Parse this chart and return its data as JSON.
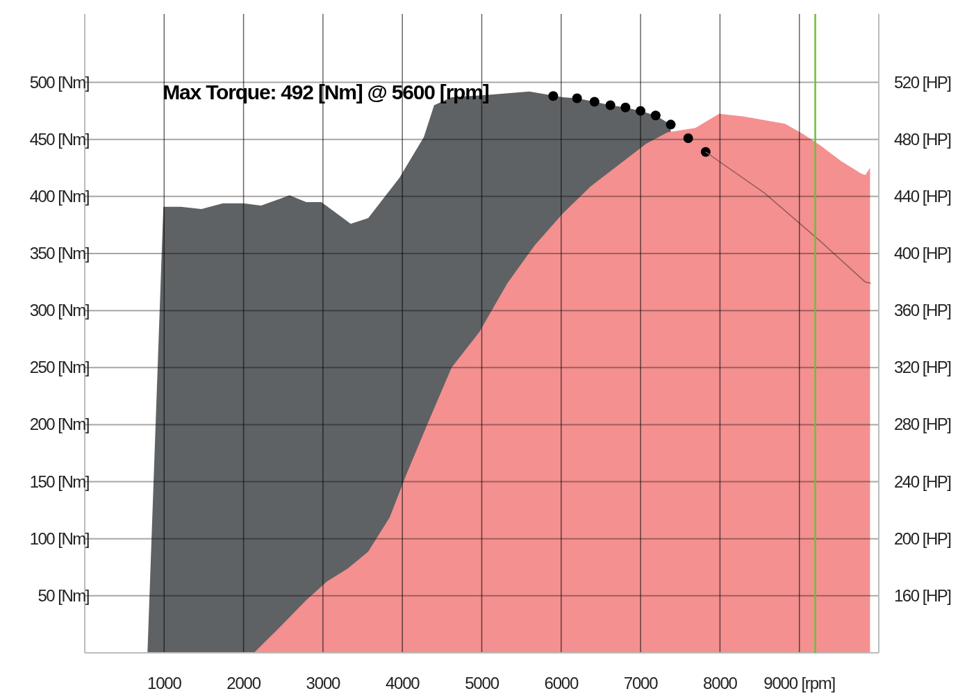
{
  "chart_data": {
    "type": "area",
    "annotations": [
      "Max Torque: 492 [Nm] @ 5600 [rpm]"
    ],
    "xlim": [
      0,
      10000
    ],
    "xticks": [
      1000,
      2000,
      3000,
      4000,
      5000,
      6000,
      7000,
      8000,
      {
        "value": 9000,
        "label": "9000 [rpm]"
      }
    ],
    "ylim": [
      0,
      560
    ],
    "yticks": [
      {
        "value": 50,
        "label": "50 [Nm]"
      },
      {
        "value": 100,
        "label": "100 [Nm]"
      },
      {
        "value": 150,
        "label": "150 [Nm]"
      },
      {
        "value": 200,
        "label": "200 [Nm]"
      },
      {
        "value": 250,
        "label": "250 [Nm]"
      },
      {
        "value": 300,
        "label": "300 [Nm]"
      },
      {
        "value": 350,
        "label": "350 [Nm]"
      },
      {
        "value": 400,
        "label": "400 [Nm]"
      },
      {
        "value": 450,
        "label": "450 [Nm]"
      },
      {
        "value": 500,
        "label": "500 [Nm]"
      }
    ],
    "y2lim": [
      120,
      568
    ],
    "y2ticks": [
      {
        "value": 160,
        "label": "160 [HP]"
      },
      {
        "value": 200,
        "label": "200 [HP]"
      },
      {
        "value": 240,
        "label": "240 [HP]"
      },
      {
        "value": 280,
        "label": "280 [HP]"
      },
      {
        "value": 320,
        "label": "320 [HP]"
      },
      {
        "value": 360,
        "label": "360 [HP]"
      },
      {
        "value": 400,
        "label": "400 [HP]"
      },
      {
        "value": 440,
        "label": "440 [HP]"
      },
      {
        "value": 480,
        "label": "480 [HP]"
      },
      {
        "value": 520,
        "label": "520 [HP]"
      }
    ],
    "grid": true,
    "ref_lines": [
      {
        "axis": "x",
        "value": 9200,
        "color": "#6cc03a"
      }
    ],
    "series": [
      {
        "color": "#5f6264",
        "x": [
          790,
          990,
          1210,
          1470,
          1740,
          2000,
          2220,
          2580,
          2790,
          2980,
          3350,
          3570,
          3960,
          4270,
          4400,
          4620,
          5060,
          5600,
          6020,
          6200,
          6420,
          6620,
          6810,
          7000,
          7190,
          7380
        ],
        "values": [
          0,
          391,
          391,
          389,
          394,
          394,
          392,
          401,
          395,
          395,
          376,
          381,
          416,
          452,
          480,
          487,
          489,
          492,
          487,
          486,
          483,
          480,
          478,
          475,
          471,
          463
        ]
      },
      {
        "axis": "y2",
        "color": "#f49090",
        "x": [
          2130,
          2440,
          2790,
          3050,
          3310,
          3570,
          3840,
          4050,
          4320,
          4620,
          4970,
          5320,
          5670,
          6020,
          6370,
          6720,
          7070,
          7340,
          7690,
          7990,
          8300,
          8820,
          9040,
          9260,
          9520,
          9780,
          9830,
          9890
        ],
        "values": [
          120,
          137,
          157,
          170,
          179,
          191,
          215,
          245,
          281,
          320,
          345,
          379,
          406,
          428,
          447,
          462,
          477,
          485,
          488,
          498,
          496,
          491,
          484,
          476,
          465,
          456,
          455,
          460
        ]
      },
      {
        "type": "scatter",
        "marker": "circle",
        "color": "#000000",
        "x": [
          5900,
          6200,
          6420,
          6620,
          6810,
          7000,
          7190,
          7380,
          7600,
          7820
        ],
        "values": [
          488,
          486,
          483,
          480,
          478,
          475,
          471,
          463,
          451,
          439
        ]
      },
      {
        "type": "line",
        "color": "#9a5a5a",
        "x": [
          7820,
          8560,
          9260,
          9830,
          9900
        ],
        "values": [
          439,
          403,
          361,
          325,
          324
        ]
      }
    ]
  }
}
